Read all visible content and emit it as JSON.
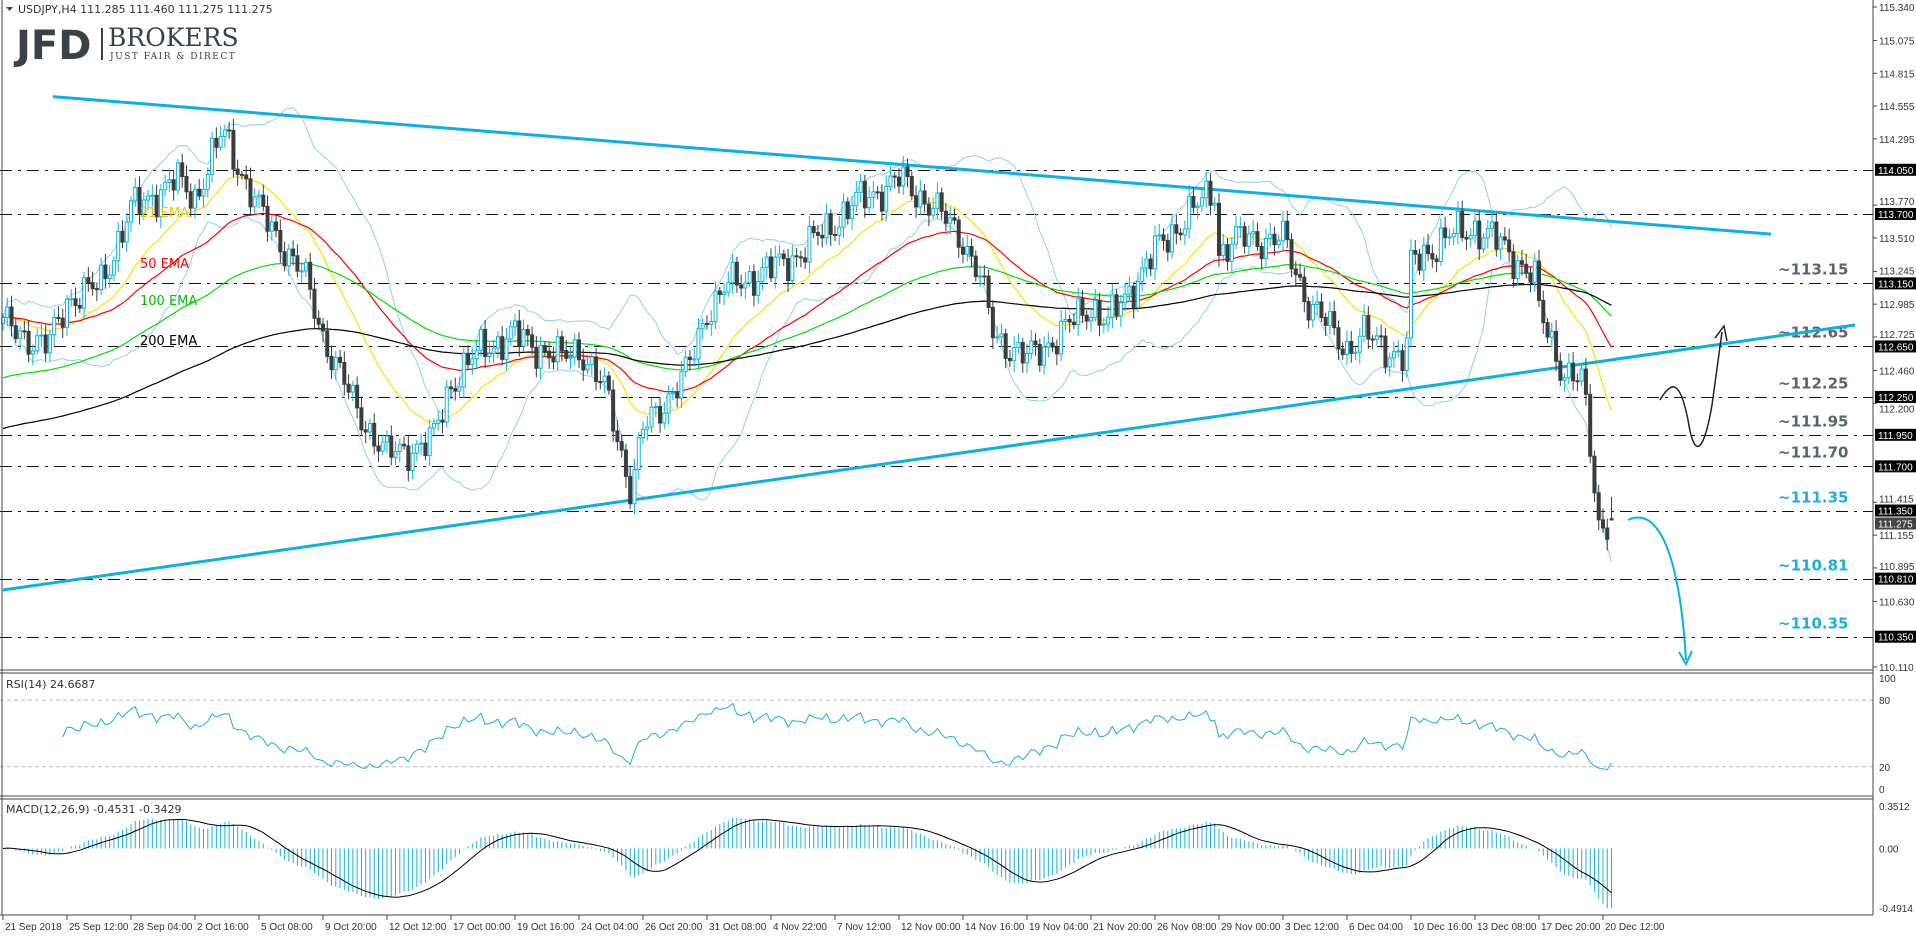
{
  "header": {
    "symbol_info": "USDJPY,H4  111.285 111.460 111.275 111.275"
  },
  "logo": {
    "mark": "JFD",
    "name": "BROKERS",
    "tagline": "JUST FAIR & DIRECT"
  },
  "colors": {
    "bull_outline": "#0cb4e0",
    "bear_fill": "#3c3c3c",
    "trendline": "#0cb1e0",
    "bollinger": "#8fd0f5",
    "ema21": "#f2e600",
    "ema50": "#ff0000",
    "ema100": "#00e000",
    "ema200": "#000000",
    "level_grey": "#5a6570",
    "level_cyan": "#1ab0e0"
  },
  "chart_data": {
    "type": "candlestick",
    "symbol": "USDJPY",
    "timeframe": "H4",
    "last_bar": {
      "open": 111.285,
      "high": 111.46,
      "low": 111.275,
      "close": 111.275
    },
    "ylim": [
      110.11,
      115.34
    ],
    "price_ticks": [
      "115.340",
      "115.075",
      "114.815",
      "114.555",
      "114.295",
      "113.770",
      "113.510",
      "113.245",
      "112.985",
      "112.725",
      "112.460",
      "112.200",
      "111.415",
      "111.155",
      "110.895",
      "110.630",
      "110.110"
    ],
    "current_price": "111.275",
    "x_axis": {
      "ticks": [
        {
          "label": "21 Sep 2018",
          "time": "2018-09-21 00:00"
        },
        {
          "label": "25 Sep 12:00",
          "time": "2018-09-25 12:00"
        },
        {
          "label": "28 Sep 04:00",
          "time": "2018-09-28 04:00"
        },
        {
          "label": "2 Oct 16:00",
          "time": "2018-10-02 16:00"
        },
        {
          "label": "5 Oct 08:00",
          "time": "2018-10-05 08:00"
        },
        {
          "label": "9 Oct 20:00",
          "time": "2018-10-09 20:00"
        },
        {
          "label": "12 Oct 12:00",
          "time": "2018-10-12 12:00"
        },
        {
          "label": "17 Oct 00:00",
          "time": "2018-10-17 00:00"
        },
        {
          "label": "19 Oct 16:00",
          "time": "2018-10-19 16:00"
        },
        {
          "label": "24 Oct 04:00",
          "time": "2018-10-24 04:00"
        },
        {
          "label": "26 Oct 20:00",
          "time": "2018-10-26 20:00"
        },
        {
          "label": "31 Oct 08:00",
          "time": "2018-10-31 08:00"
        },
        {
          "label": "4 Nov 22:00",
          "time": "2018-11-04 22:00"
        },
        {
          "label": "7 Nov 12:00",
          "time": "2018-11-07 12:00"
        },
        {
          "label": "12 Nov 00:00",
          "time": "2018-11-12 00:00"
        },
        {
          "label": "14 Nov 16:00",
          "time": "2018-11-14 16:00"
        },
        {
          "label": "19 Nov 04:00",
          "time": "2018-11-19 04:00"
        },
        {
          "label": "21 Nov 20:00",
          "time": "2018-11-21 20:00"
        },
        {
          "label": "26 Nov 08:00",
          "time": "2018-11-26 08:00"
        },
        {
          "label": "29 Nov 00:00",
          "time": "2018-11-29 00:00"
        },
        {
          "label": "3 Dec 12:00",
          "time": "2018-12-03 12:00"
        },
        {
          "label": "6 Dec 04:00",
          "time": "2018-12-06 04:00"
        },
        {
          "label": "10 Dec 16:00",
          "time": "2018-12-10 16:00"
        },
        {
          "label": "13 Dec 08:00",
          "time": "2018-12-13 08:00"
        },
        {
          "label": "17 Dec 20:00",
          "time": "2018-12-17 20:00"
        },
        {
          "label": "20 Dec 12:00",
          "time": "2018-12-20 12:00"
        }
      ]
    },
    "price_path": [
      [
        "2018-09-21 00:00",
        112.83
      ],
      [
        "2018-09-24 04:00",
        112.64
      ],
      [
        "2018-09-25 12:00",
        113.02
      ],
      [
        "2018-09-26 20:00",
        113.12
      ],
      [
        "2018-09-28 04:00",
        113.73
      ],
      [
        "2018-10-01 08:00",
        113.97
      ],
      [
        "2018-10-02 16:00",
        113.83
      ],
      [
        "2018-10-03 20:00",
        114.35
      ],
      [
        "2018-10-05 08:00",
        113.73
      ],
      [
        "2018-10-08 12:00",
        113.21
      ],
      [
        "2018-10-09 20:00",
        112.74
      ],
      [
        "2018-10-11 04:00",
        112.17
      ],
      [
        "2018-10-12 12:00",
        111.79
      ],
      [
        "2018-10-15 16:00",
        111.89
      ],
      [
        "2018-10-17 00:00",
        112.36
      ],
      [
        "2018-10-18 08:00",
        112.64
      ],
      [
        "2018-10-19 16:00",
        112.74
      ],
      [
        "2018-10-22 20:00",
        112.55
      ],
      [
        "2018-10-24 04:00",
        112.64
      ],
      [
        "2018-10-25 08:00",
        112.27
      ],
      [
        "2018-10-26 08:00",
        111.51
      ],
      [
        "2018-10-26 20:00",
        111.98
      ],
      [
        "2018-10-30 00:00",
        112.46
      ],
      [
        "2018-10-31 08:00",
        112.93
      ],
      [
        "2018-11-01 16:00",
        113.12
      ],
      [
        "2018-11-04 22:00",
        113.26
      ],
      [
        "2018-11-06 04:00",
        113.4
      ],
      [
        "2018-11-07 12:00",
        113.64
      ],
      [
        "2018-11-08 20:00",
        113.78
      ],
      [
        "2018-11-12 00:00",
        113.97
      ],
      [
        "2018-11-13 08:00",
        113.78
      ],
      [
        "2018-11-14 16:00",
        113.5
      ],
      [
        "2018-11-15 20:00",
        113.21
      ],
      [
        "2018-11-16 20:00",
        112.74
      ],
      [
        "2018-11-19 04:00",
        112.55
      ],
      [
        "2018-11-20 12:00",
        112.74
      ],
      [
        "2018-11-21 20:00",
        112.98
      ],
      [
        "2018-11-23 00:00",
        112.83
      ],
      [
        "2018-11-26 08:00",
        113.4
      ],
      [
        "2018-11-27 16:00",
        113.69
      ],
      [
        "2018-11-28 20:00",
        113.88
      ],
      [
        "2018-11-29 00:00",
        113.4
      ],
      [
        "2018-11-30 08:00",
        113.5
      ],
      [
        "2018-12-03 12:00",
        113.5
      ],
      [
        "2018-12-04 12:00",
        113.02
      ],
      [
        "2018-12-05 16:00",
        112.74
      ],
      [
        "2018-12-06 04:00",
        112.64
      ],
      [
        "2018-12-07 08:00",
        112.74
      ],
      [
        "2018-12-10 08:00",
        112.55
      ],
      [
        "2018-12-10 16:00",
        113.3
      ],
      [
        "2018-12-12 00:00",
        113.5
      ],
      [
        "2018-12-13 08:00",
        113.59
      ],
      [
        "2018-12-14 16:00",
        113.5
      ],
      [
        "2018-12-17 12:00",
        113.21
      ],
      [
        "2018-12-17 20:00",
        112.93
      ],
      [
        "2018-12-18 20:00",
        112.46
      ],
      [
        "2018-12-19 16:00",
        112.36
      ],
      [
        "2018-12-20 00:00",
        111.79
      ],
      [
        "2018-12-20 08:00",
        111.23
      ],
      [
        "2018-12-20 20:00",
        111.275
      ]
    ],
    "indicators": {
      "ema": [
        {
          "period": 21,
          "label": "21 EMA"
        },
        {
          "period": 50,
          "label": "50 EMA"
        },
        {
          "period": 100,
          "label": "100 EMA"
        },
        {
          "period": 200,
          "label": "200 EMA"
        }
      ],
      "bollinger": {
        "period": 20,
        "deviation": 2
      }
    },
    "levels": [
      {
        "price": "114.050",
        "label": ""
      },
      {
        "price": "113.700",
        "label": ""
      },
      {
        "price": "113.150",
        "label": "~113.15",
        "tone": "grey"
      },
      {
        "price": "112.650",
        "label": "~112.65",
        "tone": "grey"
      },
      {
        "price": "112.250",
        "label": "~112.25",
        "tone": "grey"
      },
      {
        "price": "111.950",
        "label": "~111.95",
        "tone": "grey"
      },
      {
        "price": "111.700",
        "label": "~111.70",
        "tone": "grey"
      },
      {
        "price": "111.350",
        "label": "~111.35",
        "tone": "cyan"
      },
      {
        "price": "110.810",
        "label": "~110.81",
        "tone": "cyan"
      },
      {
        "price": "110.350",
        "label": "~110.35",
        "tone": "cyan"
      }
    ],
    "trendlines": [
      {
        "from": {
          "time": "2018-09-24 12:00",
          "price": 114.63
        },
        "to": {
          "time": "2018-12-27 12:00",
          "price": 113.54
        }
      },
      {
        "from": {
          "time": "2018-09-21 00:00",
          "price": 110.72
        },
        "to": {
          "time": "2018-12-31 00:00",
          "price": 112.82
        }
      }
    ],
    "rsi": {
      "title": "RSI(14) 24.6687",
      "period": 14,
      "ylim": [
        0,
        100
      ],
      "levels": [
        80,
        20
      ],
      "ticks": [
        "100",
        "80",
        "20",
        "0"
      ]
    },
    "macd": {
      "title": "MACD(12,26,9) -0.4531 -0.3429",
      "params": [
        12,
        26,
        9
      ],
      "ylim": [
        -0.4914,
        0.3512
      ],
      "ticks": [
        "0.3512",
        "0.00",
        "-0.4914"
      ]
    }
  }
}
